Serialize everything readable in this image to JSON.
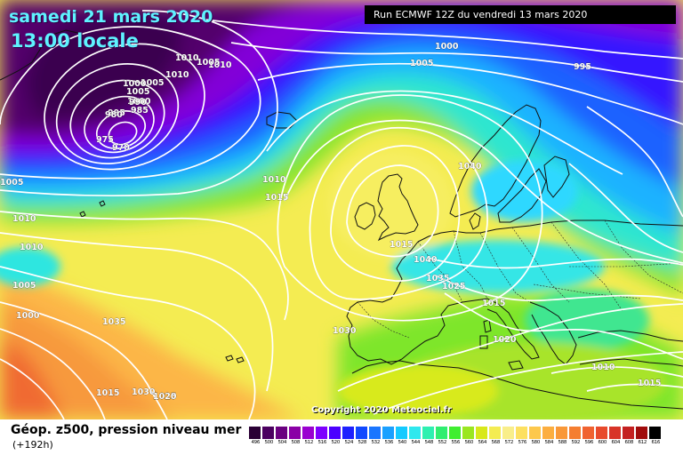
{
  "header": {
    "date": "samedi 21 mars 2020",
    "time": "13:00 locale",
    "run": "Run ECMWF 12Z du vendredi 13 mars 2020"
  },
  "footer": {
    "field": "Géop. z500, pression niveau mer",
    "lead": "(+192h)",
    "copyright": "Copyright 2020 Meteociel.fr"
  },
  "legend": {
    "labels": [
      "496",
      "500",
      "504",
      "508",
      "512",
      "516",
      "520",
      "524",
      "528",
      "532",
      "536",
      "540",
      "544",
      "548",
      "552",
      "556",
      "560",
      "564",
      "568",
      "572",
      "576",
      "580",
      "584",
      "588",
      "592",
      "596",
      "600",
      "604",
      "608",
      "612",
      "616"
    ],
    "colors": [
      "#2a0035",
      "#4b0060",
      "#6a0080",
      "#8a00a6",
      "#9a00d0",
      "#7e00ff",
      "#4c00ff",
      "#1d20ff",
      "#1048ff",
      "#1a76ff",
      "#1aa0ff",
      "#14caff",
      "#2fe8ee",
      "#2ef0b0",
      "#30ee70",
      "#40ee30",
      "#9ae620",
      "#d8e81a",
      "#f4ec52",
      "#f9ee8a",
      "#fde060",
      "#fdc84c",
      "#fcae40",
      "#f99838",
      "#f57e30",
      "#f06230",
      "#e84a2c",
      "#d83428",
      "#c42020",
      "#a00c0c",
      "#000000"
    ]
  },
  "isobars": {
    "labels": [
      "1010",
      "1010",
      "1005",
      "1010",
      "1000",
      "1005",
      "1005",
      "995",
      "1000",
      "1005",
      "1000",
      "995",
      "990",
      "985",
      "980",
      "975",
      "970",
      "1005",
      "1010",
      "1010",
      "1015",
      "1040",
      "1010",
      "1005",
      "1000",
      "1015",
      "1035",
      "1040",
      "1035",
      "1030",
      "1025",
      "1015",
      "1020",
      "1010",
      "1015",
      "1015",
      "1030",
      "1025",
      "1020"
    ]
  }
}
